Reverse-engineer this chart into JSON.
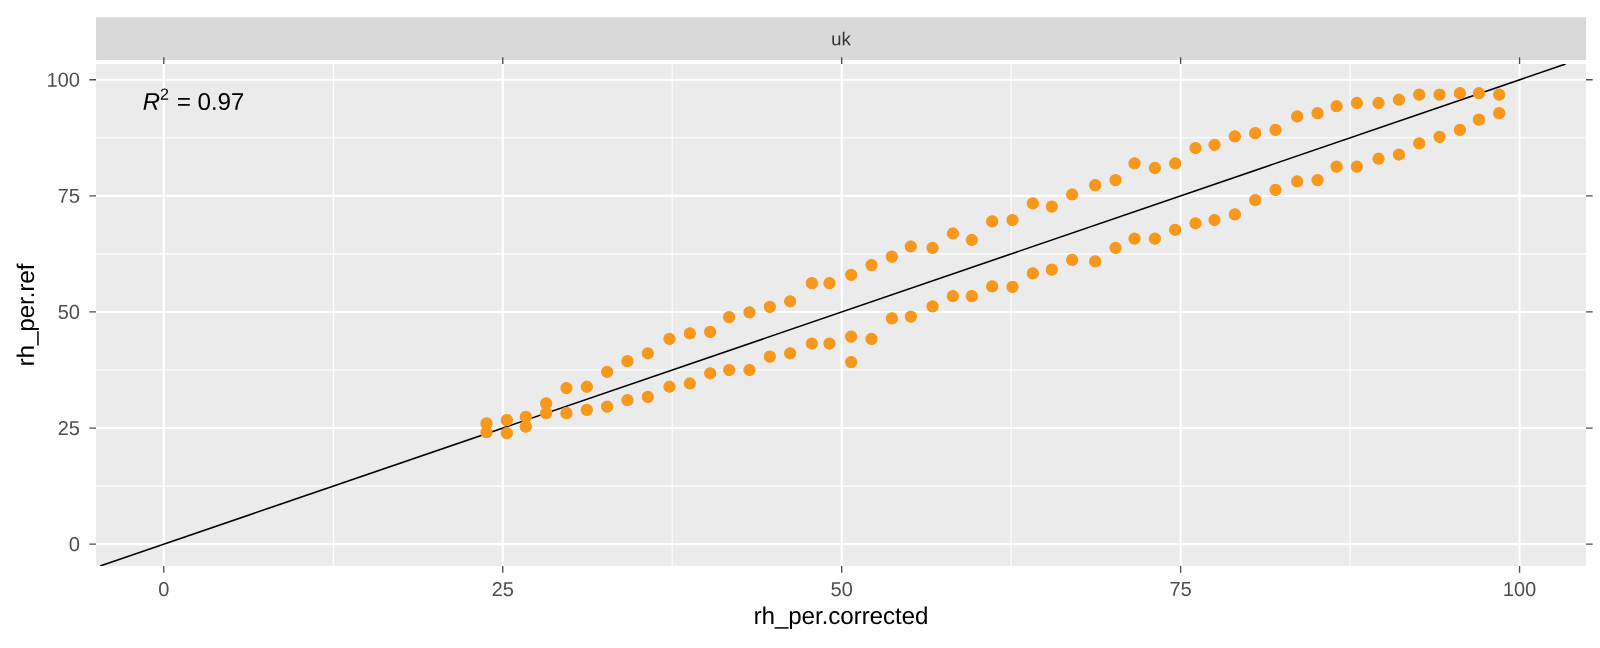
{
  "chart_data": {
    "type": "scatter",
    "title": "uk",
    "xlabel": "rh_per.corrected",
    "ylabel": "rh_per.ref",
    "annotations": [
      "*R*$^{2}$ = 0.97"
    ],
    "xlim": [
      -5,
      104.9
    ],
    "ylim": [
      -4.7,
      103.4
    ],
    "xticks": [
      0,
      25,
      50,
      75,
      100
    ],
    "yticks": [
      0,
      25,
      50,
      75,
      100
    ],
    "grid": true,
    "series": [
      {
        "color": "#f7981d",
        "marker": "circle",
        "x": [
          23.8,
          23.8,
          25.3,
          25.3,
          26.7,
          26.7,
          28.2,
          28.2,
          29.7,
          29.7,
          31.2,
          31.2,
          32.7,
          32.7,
          34.2,
          34.2,
          35.7,
          35.7,
          37.3,
          37.3,
          38.8,
          38.8,
          40.3,
          40.3,
          41.7,
          41.7,
          43.2,
          43.2,
          44.7,
          44.7,
          46.2,
          46.2,
          47.8,
          47.8,
          49.1,
          49.1,
          50.7,
          50.7,
          50.7,
          52.2,
          52.2,
          53.7,
          53.7,
          55.1,
          55.1,
          56.7,
          56.7,
          58.2,
          58.2,
          59.6,
          59.6,
          61.1,
          61.1,
          62.6,
          62.6,
          64.1,
          64.1,
          65.5,
          65.5,
          67.0,
          67.0,
          68.7,
          68.7,
          70.2,
          70.2,
          71.6,
          71.6,
          73.1,
          73.1,
          74.6,
          74.6,
          76.1,
          76.1,
          77.5,
          77.5,
          79.0,
          79.0,
          80.5,
          80.5,
          82.0,
          82.0,
          83.6,
          83.6,
          85.1,
          85.1,
          86.5,
          86.5,
          88.0,
          88.0,
          89.6,
          89.6,
          91.1,
          91.1,
          92.6,
          92.6,
          94.1,
          94.1,
          95.6,
          95.6,
          97.0,
          97.0,
          98.5,
          98.5
        ],
        "values": [
          26.0,
          24.1,
          26.7,
          23.9,
          27.4,
          25.3,
          30.3,
          28.2,
          33.6,
          28.2,
          33.9,
          28.9,
          37.1,
          29.6,
          39.4,
          31.0,
          41.1,
          31.7,
          44.2,
          33.9,
          45.4,
          34.6,
          45.7,
          36.8,
          48.9,
          37.5,
          49.9,
          37.5,
          51.1,
          40.4,
          52.3,
          41.1,
          56.2,
          43.2,
          56.2,
          43.2,
          58.0,
          44.7,
          39.2,
          60.1,
          44.2,
          61.9,
          48.6,
          64.1,
          49.0,
          63.8,
          51.2,
          66.9,
          53.4,
          65.5,
          53.4,
          69.5,
          55.5,
          69.8,
          55.4,
          73.4,
          58.3,
          72.7,
          59.1,
          75.3,
          61.2,
          77.3,
          60.9,
          78.4,
          63.8,
          82.0,
          65.8,
          81.0,
          65.8,
          82.0,
          67.7,
          85.3,
          69.1,
          86.0,
          69.8,
          87.8,
          71.0,
          88.5,
          74.1,
          89.2,
          76.3,
          92.1,
          78.1,
          92.8,
          78.4,
          94.3,
          81.3,
          95.0,
          81.3,
          95.0,
          83.0,
          95.7,
          83.9,
          96.8,
          86.3,
          96.8,
          87.7,
          97.1,
          89.2,
          97.1,
          91.4,
          96.8,
          92.8
        ]
      },
      {
        "type": "line",
        "color": "#000000",
        "marker": "none",
        "x": [
          -4.7,
          103.4
        ],
        "values": [
          -4.7,
          103.4
        ]
      }
    ]
  }
}
